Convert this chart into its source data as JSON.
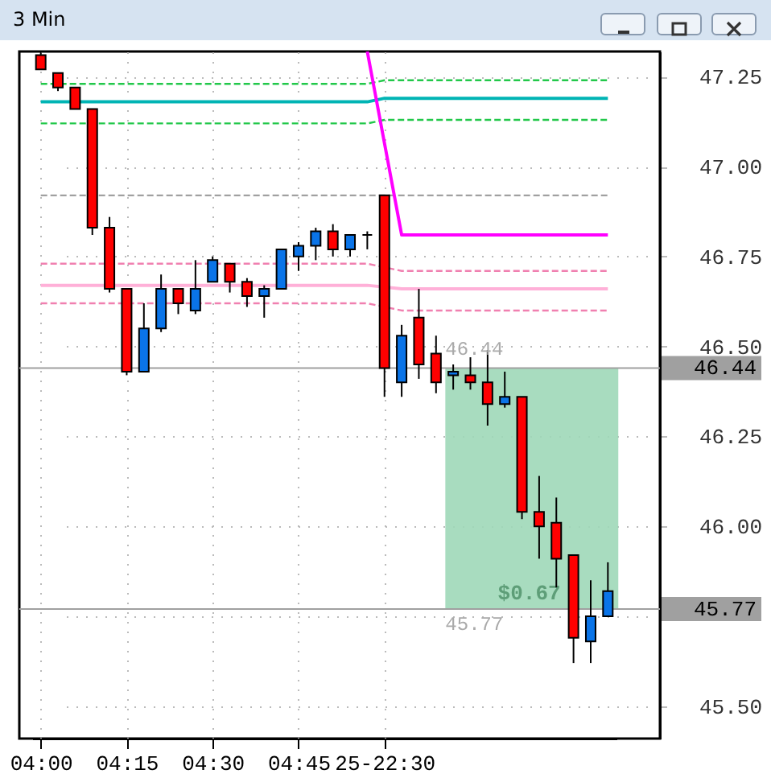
{
  "chart_data": {
    "type": "candlestick",
    "title": "3 Min",
    "categories": [
      "04:00",
      null,
      null,
      null,
      null,
      "04:15",
      null,
      null,
      null,
      null,
      "04:30",
      null,
      null,
      null,
      null,
      "04:45",
      null,
      null,
      null,
      null,
      "25-22:30",
      null,
      null,
      null,
      null,
      null,
      null,
      null,
      null,
      null,
      null,
      null,
      null,
      null
    ],
    "ohlc": [
      [
        47.31,
        47.32,
        47.27,
        47.27
      ],
      [
        47.26,
        47.26,
        47.21,
        47.22
      ],
      [
        47.22,
        47.22,
        47.16,
        47.16
      ],
      [
        47.16,
        47.16,
        46.81,
        46.83
      ],
      [
        46.83,
        46.86,
        46.65,
        46.66
      ],
      [
        46.66,
        46.66,
        46.42,
        46.43
      ],
      [
        46.43,
        46.62,
        46.43,
        46.55
      ],
      [
        46.55,
        46.7,
        46.54,
        46.66
      ],
      [
        46.66,
        46.66,
        46.59,
        46.62
      ],
      [
        46.6,
        46.74,
        46.59,
        46.66
      ],
      [
        46.68,
        46.75,
        46.68,
        46.74
      ],
      [
        46.73,
        46.73,
        46.65,
        46.68
      ],
      [
        46.68,
        46.69,
        46.61,
        46.64
      ],
      [
        46.64,
        46.67,
        46.58,
        46.66
      ],
      [
        46.66,
        46.77,
        46.66,
        46.77
      ],
      [
        46.75,
        46.79,
        46.71,
        46.78
      ],
      [
        46.78,
        46.83,
        46.74,
        46.82
      ],
      [
        46.82,
        46.84,
        46.75,
        46.77
      ],
      [
        46.77,
        46.81,
        46.75,
        46.81
      ],
      [
        46.81,
        46.82,
        46.77,
        46.81
      ],
      [
        46.92,
        46.92,
        46.36,
        46.44
      ],
      [
        46.4,
        46.56,
        46.36,
        46.53
      ],
      [
        46.58,
        46.66,
        46.41,
        46.45
      ],
      [
        46.48,
        46.53,
        46.37,
        46.4
      ],
      [
        46.42,
        46.45,
        46.38,
        46.43
      ],
      [
        46.42,
        46.47,
        46.38,
        46.4
      ],
      [
        46.4,
        46.49,
        46.28,
        46.34
      ],
      [
        46.34,
        46.43,
        46.33,
        46.36
      ],
      [
        46.36,
        46.36,
        46.02,
        46.04
      ],
      [
        46.04,
        46.14,
        45.91,
        46.0
      ],
      [
        46.01,
        46.08,
        45.83,
        45.91
      ],
      [
        45.92,
        45.92,
        45.62,
        45.69
      ],
      [
        45.68,
        45.85,
        45.62,
        45.75
      ],
      [
        45.75,
        45.9,
        45.75,
        45.82
      ]
    ],
    "colors": [
      "#ff0000",
      "#ff0000",
      "#ff0000",
      "#ff0000",
      "#ff0000",
      "#ff0000",
      "#0a74e8",
      "#0a74e8",
      "#ff0000",
      "#0a74e8",
      "#0a74e8",
      "#ff0000",
      "#ff0000",
      "#0a74e8",
      "#0a74e8",
      "#0a74e8",
      "#0a74e8",
      "#ff0000",
      "#0a74e8",
      "#000000",
      "#ff0000",
      "#0a74e8",
      "#ff0000",
      "#ff0000",
      "#0a74e8",
      "#ff0000",
      "#ff0000",
      "#0a74e8",
      "#ff0000",
      "#ff0000",
      "#ff0000",
      "#ff0000",
      "#0a74e8",
      "#0a74e8"
    ],
    "series": [
      {
        "type": "line",
        "color": "#22c84a",
        "line_style": "dashed",
        "values": [
          47.23,
          null,
          47.23,
          47.23,
          47.23,
          47.23,
          47.23,
          47.23,
          47.23,
          47.23,
          47.23,
          47.23,
          47.23,
          47.23,
          47.23,
          47.23,
          47.23,
          47.23,
          47.23,
          47.23,
          47.24,
          47.24,
          47.24,
          47.24,
          47.24,
          47.24,
          47.24,
          47.24,
          47.24,
          47.24,
          47.24,
          47.24,
          47.24,
          47.24
        ]
      },
      {
        "type": "line",
        "color": "#00b4b4",
        "line_style": "solid",
        "values": [
          47.18,
          47.18,
          null,
          47.18,
          47.18,
          47.18,
          47.18,
          47.18,
          47.18,
          47.18,
          47.18,
          47.18,
          47.18,
          47.18,
          47.18,
          47.18,
          47.18,
          47.18,
          47.18,
          47.18,
          47.19,
          47.19,
          47.19,
          47.19,
          47.19,
          47.19,
          47.19,
          47.19,
          47.19,
          47.19,
          47.19,
          47.19,
          47.19,
          47.19
        ]
      },
      {
        "type": "line",
        "color": "#22c84a",
        "line_style": "dashed",
        "values": [
          47.12,
          47.12,
          47.12,
          null,
          47.12,
          47.12,
          47.12,
          47.12,
          47.12,
          47.12,
          47.12,
          47.12,
          47.12,
          47.12,
          47.12,
          47.12,
          47.12,
          47.12,
          47.12,
          47.12,
          47.13,
          47.13,
          47.13,
          47.13,
          47.13,
          47.13,
          47.13,
          47.13,
          47.13,
          47.13,
          47.13,
          47.13,
          47.13,
          47.13
        ]
      },
      {
        "type": "line",
        "color": "#a0a0a0",
        "line_style": "dashed",
        "values": [
          46.92,
          46.92,
          46.92,
          null,
          46.92,
          46.92,
          46.92,
          46.92,
          46.92,
          46.92,
          46.92,
          46.92,
          46.92,
          46.92,
          46.92,
          46.92,
          46.92,
          46.92,
          46.92,
          46.92,
          null,
          46.92,
          46.92,
          46.92,
          46.92,
          46.92,
          46.92,
          46.92,
          46.92,
          46.92,
          46.92,
          46.92,
          46.92,
          46.92
        ]
      },
      {
        "type": "line",
        "color": "#ff00ff",
        "line_style": "solid",
        "values": [
          null,
          null,
          null,
          null,
          null,
          null,
          null,
          null,
          null,
          null,
          null,
          null,
          null,
          null,
          null,
          null,
          null,
          null,
          null,
          47.32,
          null,
          46.81,
          46.81,
          46.81,
          46.81,
          46.81,
          46.81,
          46.81,
          46.81,
          46.81,
          46.81,
          46.81,
          46.81,
          46.81
        ]
      },
      {
        "type": "line",
        "color": "#f080b0",
        "line_style": "dashed",
        "values": [
          46.73,
          46.73,
          46.73,
          46.73,
          null,
          46.73,
          46.73,
          46.73,
          46.73,
          46.73,
          null,
          null,
          46.73,
          46.73,
          null,
          46.73,
          46.73,
          46.73,
          46.73,
          46.73,
          null,
          46.71,
          46.71,
          46.71,
          46.71,
          46.71,
          46.71,
          46.71,
          46.71,
          46.71,
          46.71,
          46.71,
          46.71,
          46.71
        ]
      },
      {
        "type": "line",
        "color": "#ffb0d8",
        "line_style": "solid",
        "values": [
          46.67,
          46.67,
          46.67,
          46.67,
          null,
          null,
          46.67,
          46.67,
          46.67,
          46.67,
          46.67,
          46.67,
          null,
          null,
          null,
          46.67,
          46.67,
          46.67,
          46.67,
          46.67,
          null,
          46.66,
          46.66,
          46.66,
          46.66,
          46.66,
          46.66,
          46.66,
          46.66,
          46.66,
          46.66,
          46.66,
          46.66,
          46.66
        ]
      },
      {
        "type": "line",
        "color": "#f080b0",
        "line_style": "dashed",
        "values": [
          46.62,
          46.62,
          46.62,
          46.62,
          46.62,
          null,
          null,
          null,
          null,
          null,
          46.62,
          46.62,
          46.62,
          46.62,
          46.62,
          46.62,
          46.62,
          46.62,
          46.62,
          46.62,
          null,
          46.6,
          46.6,
          46.6,
          46.6,
          46.6,
          46.6,
          46.6,
          46.6,
          46.6,
          46.6,
          46.6,
          46.6,
          46.6
        ]
      }
    ],
    "ref_lines": [
      {
        "axis": "y",
        "value": 46.44,
        "label": "46.44",
        "color": "#a0a0a0"
      },
      {
        "axis": "y",
        "value": 45.77,
        "label": "45.77",
        "color": "#a0a0a0"
      }
    ],
    "bands": [
      {
        "axis": "y",
        "from": 45.77,
        "to": 46.44,
        "label": "$0.67",
        "color": "#9fd8b8"
      }
    ],
    "annotations": [
      "46.44",
      "45.77"
    ],
    "ylim": [
      45.41,
      47.32
    ],
    "yticks": [
      {
        "value": 45.5,
        "label": "45.50"
      },
      {
        "value": 45.75,
        "label": null
      },
      {
        "value": 46,
        "label": "46.00"
      },
      {
        "value": 46.25,
        "label": "46.25"
      },
      {
        "value": 46.5,
        "label": "46.50"
      },
      {
        "value": 46.75,
        "label": "46.75"
      },
      {
        "value": 47,
        "label": "47.00"
      },
      {
        "value": 47.25,
        "label": "47.25"
      }
    ],
    "grid": true
  }
}
